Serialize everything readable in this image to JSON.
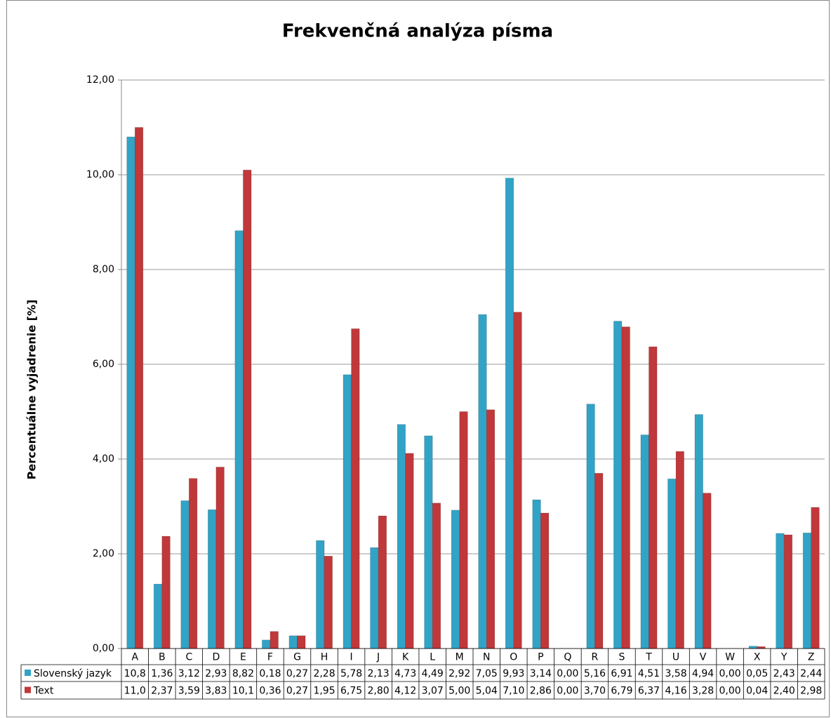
{
  "chart_data": {
    "type": "bar",
    "title": "Frekvenčná analýza písma",
    "y_label": "Percentuálne vyjadrenie [%]",
    "categories": [
      "A",
      "B",
      "C",
      "D",
      "E",
      "F",
      "G",
      "H",
      "I",
      "J",
      "K",
      "L",
      "M",
      "N",
      "O",
      "P",
      "Q",
      "R",
      "S",
      "T",
      "U",
      "V",
      "W",
      "X",
      "Y",
      "Z"
    ],
    "series": [
      {
        "name": "Slovenský jazyk",
        "color": "#31a3c6",
        "values": [
          10.8,
          1.36,
          3.12,
          2.93,
          8.82,
          0.18,
          0.27,
          2.28,
          5.78,
          2.13,
          4.73,
          4.49,
          2.92,
          7.05,
          9.93,
          3.14,
          0.0,
          5.16,
          6.91,
          4.51,
          3.58,
          4.94,
          0.0,
          0.05,
          2.43,
          2.44
        ],
        "value_labels": [
          "10,8",
          "1,36",
          "3,12",
          "2,93",
          "8,82",
          "0,18",
          "0,27",
          "2,28",
          "5,78",
          "2,13",
          "4,73",
          "4,49",
          "2,92",
          "7,05",
          "9,93",
          "3,14",
          "0,00",
          "5,16",
          "6,91",
          "4,51",
          "3,58",
          "4,94",
          "0,00",
          "0,05",
          "2,43",
          "2,44"
        ]
      },
      {
        "name": "Text",
        "color": "#c0383a",
        "values": [
          11.0,
          2.37,
          3.59,
          3.83,
          10.1,
          0.36,
          0.27,
          1.95,
          6.75,
          2.8,
          4.12,
          3.07,
          5.0,
          5.04,
          7.1,
          2.86,
          0.0,
          3.7,
          6.79,
          6.37,
          4.16,
          3.28,
          0.0,
          0.04,
          2.4,
          2.98
        ],
        "value_labels": [
          "11,0",
          "2,37",
          "3,59",
          "3,83",
          "10,1",
          "0,36",
          "0,27",
          "1,95",
          "6,75",
          "2,80",
          "4,12",
          "3,07",
          "5,00",
          "5,04",
          "7,10",
          "2,86",
          "0,00",
          "3,70",
          "6,79",
          "6,37",
          "4,16",
          "3,28",
          "0,00",
          "0,04",
          "2,40",
          "2,98"
        ]
      }
    ],
    "ylim": [
      0,
      12
    ],
    "yticks": [
      {
        "value": 0,
        "label": "0,00"
      },
      {
        "value": 2,
        "label": "2,00"
      },
      {
        "value": 4,
        "label": "4,00"
      },
      {
        "value": 6,
        "label": "6,00"
      },
      {
        "value": 8,
        "label": "8,00"
      },
      {
        "value": 10,
        "label": "10,00"
      },
      {
        "value": 12,
        "label": "12,00"
      }
    ],
    "grid": true
  }
}
